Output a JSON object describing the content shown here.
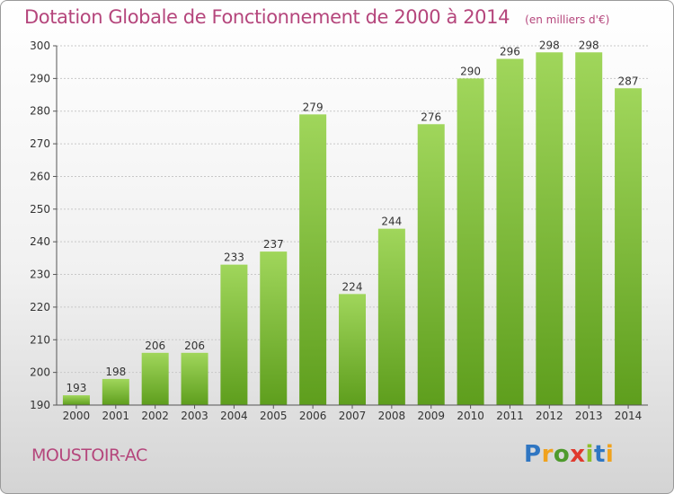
{
  "header": {
    "title": "Dotation Globale de Fonctionnement de 2000 à 2014",
    "unit": "(en milliers d'€)"
  },
  "footer": {
    "city": "MOUSTOIR-AC",
    "logo_letters": [
      "P",
      "r",
      "o",
      "x",
      "i",
      "t",
      "i"
    ]
  },
  "colors": {
    "title": "#b5467c",
    "bar_top": "#a0d65b",
    "bar_bottom": "#5e9e1d",
    "grid": "#c8c8c8"
  },
  "chart_data": {
    "type": "bar",
    "title": "Dotation Globale de Fonctionnement de 2000 à 2014",
    "subtitle": "(en milliers d'€)",
    "xlabel": "",
    "ylabel": "",
    "categories": [
      "2000",
      "2001",
      "2002",
      "2003",
      "2004",
      "2005",
      "2006",
      "2007",
      "2008",
      "2009",
      "2010",
      "2011",
      "2012",
      "2013",
      "2014"
    ],
    "values": [
      193,
      198,
      206,
      206,
      233,
      237,
      279,
      224,
      244,
      276,
      290,
      296,
      298,
      298,
      287
    ],
    "ylim": [
      190,
      300
    ],
    "yticks": [
      190,
      200,
      210,
      220,
      230,
      240,
      250,
      260,
      270,
      280,
      290,
      300
    ],
    "grid": true,
    "data_labels": true
  }
}
